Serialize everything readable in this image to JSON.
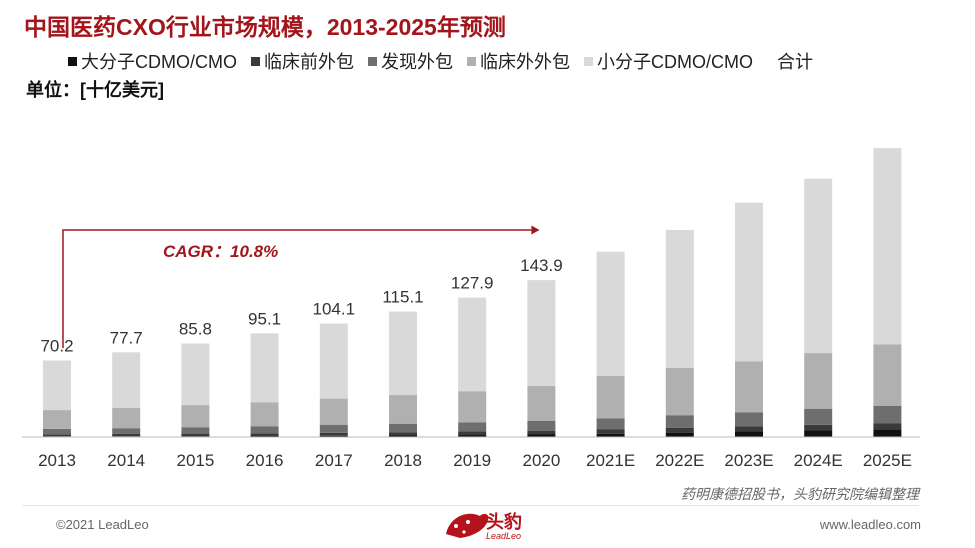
{
  "title": "中国医药CXO行业市场规模，2013-2025年预测",
  "unit_label": "单位：[十亿美元]",
  "source": "药明康德招股书，头豹研究院编辑整理",
  "copyright": "©2021 LeadLeo",
  "website": "www.leadleo.com",
  "logo": {
    "text": "头豹",
    "sub": "LeadLeo"
  },
  "colors": {
    "title": "#a3151b",
    "cagr": "#a3151b",
    "series": [
      "#111111",
      "#3a3a3a",
      "#6e6e6e",
      "#b0b0b0",
      "#d9d9d9"
    ]
  },
  "chart_data": {
    "type": "bar",
    "stacked": true,
    "categories": [
      "2013",
      "2014",
      "2015",
      "2016",
      "2017",
      "2018",
      "2019",
      "2020",
      "2021E",
      "2022E",
      "2023E",
      "2024E",
      "2025E"
    ],
    "series": [
      {
        "name": "大分子CDMO/CMO",
        "values": [
          0.6,
          0.7,
          0.8,
          0.9,
          1.1,
          1.4,
          1.8,
          2.3,
          3.0,
          4.0,
          5.0,
          6.0,
          7.0
        ]
      },
      {
        "name": "临床前外包",
        "values": [
          1.9,
          2.1,
          2.3,
          2.5,
          2.8,
          3.0,
          3.2,
          3.5,
          3.9,
          4.3,
          4.7,
          5.2,
          5.7
        ]
      },
      {
        "name": "发现外包",
        "values": [
          4.9,
          5.3,
          5.9,
          6.5,
          7.1,
          7.8,
          8.5,
          9.1,
          10.3,
          11.7,
          13.0,
          14.5,
          16.0
        ]
      },
      {
        "name": "临床外外包",
        "values": [
          17.3,
          18.7,
          20.3,
          22.0,
          24.2,
          26.3,
          28.5,
          32.0,
          38.8,
          43.3,
          46.8,
          51.3,
          56.3
        ]
      },
      {
        "name": "小分子CDMO/CMO",
        "values": [
          45.5,
          50.9,
          56.5,
          63.2,
          68.9,
          76.6,
          85.9,
          97.0,
          114.0,
          126.7,
          145.5,
          160.0,
          180.0
        ]
      }
    ],
    "totals": {
      "name": "合计",
      "values": [
        "70.2",
        "77.7",
        "85.8",
        "95.1",
        "104.1",
        "115.1",
        "127.9",
        "143.9",
        "",
        "",
        "",
        "",
        ""
      ]
    },
    "annotation": {
      "label": "CAGR：10.8%",
      "from": "2013",
      "to": "2020"
    },
    "ylim": [
      0,
      300
    ],
    "grid": false,
    "legend_position": "top"
  }
}
